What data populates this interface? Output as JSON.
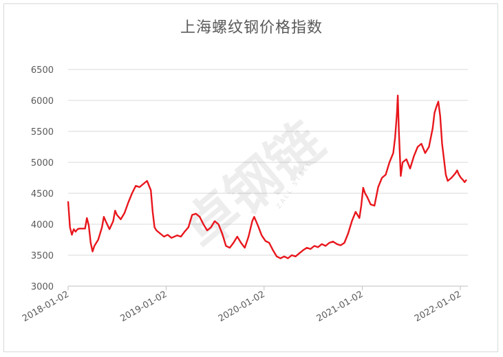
{
  "chart_data": {
    "type": "line",
    "title": "上海螺纹钢价格指数",
    "xlabel": "",
    "ylabel": "",
    "ylim": [
      3000,
      6500
    ],
    "yticks": [
      3000,
      3500,
      4000,
      4500,
      5000,
      5500,
      6000,
      6500
    ],
    "xticks": [
      "2018-01-02",
      "2019-01-02",
      "2020-01-02",
      "2021-01-02",
      "2022-01-02"
    ],
    "grid": true,
    "legend": "none",
    "series": [
      {
        "color": "#e8161c",
        "points": [
          [
            "2018-01-02",
            4370
          ],
          [
            "2018-01-09",
            3950
          ],
          [
            "2018-01-16",
            3830
          ],
          [
            "2018-01-23",
            3920
          ],
          [
            "2018-01-30",
            3880
          ],
          [
            "2018-02-06",
            3920
          ],
          [
            "2018-02-13",
            3930
          ],
          [
            "2018-03-06",
            3930
          ],
          [
            "2018-03-13",
            4100
          ],
          [
            "2018-03-20",
            3980
          ],
          [
            "2018-03-27",
            3700
          ],
          [
            "2018-04-03",
            3560
          ],
          [
            "2018-04-10",
            3650
          ],
          [
            "2018-04-24",
            3750
          ],
          [
            "2018-05-08",
            3950
          ],
          [
            "2018-05-15",
            4120
          ],
          [
            "2018-05-22",
            4050
          ],
          [
            "2018-06-05",
            3920
          ],
          [
            "2018-06-19",
            4050
          ],
          [
            "2018-06-26",
            4220
          ],
          [
            "2018-07-03",
            4150
          ],
          [
            "2018-07-17",
            4080
          ],
          [
            "2018-07-31",
            4180
          ],
          [
            "2018-08-14",
            4350
          ],
          [
            "2018-08-28",
            4500
          ],
          [
            "2018-09-11",
            4620
          ],
          [
            "2018-09-25",
            4600
          ],
          [
            "2018-10-09",
            4650
          ],
          [
            "2018-10-23",
            4700
          ],
          [
            "2018-11-06",
            4550
          ],
          [
            "2018-11-13",
            4200
          ],
          [
            "2018-11-20",
            3950
          ],
          [
            "2018-11-27",
            3900
          ],
          [
            "2018-12-11",
            3850
          ],
          [
            "2018-12-25",
            3800
          ],
          [
            "2019-01-08",
            3830
          ],
          [
            "2019-01-22",
            3780
          ],
          [
            "2019-02-12",
            3820
          ],
          [
            "2019-02-26",
            3800
          ],
          [
            "2019-03-12",
            3880
          ],
          [
            "2019-03-26",
            3950
          ],
          [
            "2019-04-09",
            4150
          ],
          [
            "2019-04-23",
            4170
          ],
          [
            "2019-05-07",
            4120
          ],
          [
            "2019-05-21",
            4000
          ],
          [
            "2019-06-04",
            3900
          ],
          [
            "2019-06-18",
            3950
          ],
          [
            "2019-07-02",
            4050
          ],
          [
            "2019-07-16",
            4000
          ],
          [
            "2019-07-30",
            3850
          ],
          [
            "2019-08-13",
            3650
          ],
          [
            "2019-08-27",
            3620
          ],
          [
            "2019-09-10",
            3700
          ],
          [
            "2019-09-24",
            3800
          ],
          [
            "2019-10-08",
            3700
          ],
          [
            "2019-10-22",
            3620
          ],
          [
            "2019-11-05",
            3800
          ],
          [
            "2019-11-19",
            4050
          ],
          [
            "2019-11-26",
            4120
          ],
          [
            "2019-12-10",
            3980
          ],
          [
            "2019-12-24",
            3820
          ],
          [
            "2020-01-07",
            3730
          ],
          [
            "2020-01-21",
            3700
          ],
          [
            "2020-02-04",
            3580
          ],
          [
            "2020-02-18",
            3480
          ],
          [
            "2020-03-03",
            3450
          ],
          [
            "2020-03-17",
            3480
          ],
          [
            "2020-03-31",
            3450
          ],
          [
            "2020-04-14",
            3500
          ],
          [
            "2020-04-28",
            3480
          ],
          [
            "2020-05-12",
            3530
          ],
          [
            "2020-05-26",
            3580
          ],
          [
            "2020-06-09",
            3620
          ],
          [
            "2020-06-23",
            3600
          ],
          [
            "2020-07-07",
            3650
          ],
          [
            "2020-07-21",
            3630
          ],
          [
            "2020-08-04",
            3680
          ],
          [
            "2020-08-18",
            3650
          ],
          [
            "2020-09-01",
            3700
          ],
          [
            "2020-09-15",
            3720
          ],
          [
            "2020-09-29",
            3680
          ],
          [
            "2020-10-13",
            3660
          ],
          [
            "2020-10-27",
            3700
          ],
          [
            "2020-11-10",
            3850
          ],
          [
            "2020-11-24",
            4050
          ],
          [
            "2020-12-08",
            4200
          ],
          [
            "2020-12-22",
            4100
          ],
          [
            "2020-12-29",
            4300
          ],
          [
            "2021-01-05",
            4590
          ],
          [
            "2021-01-12",
            4500
          ],
          [
            "2021-01-19",
            4450
          ],
          [
            "2021-02-02",
            4320
          ],
          [
            "2021-02-16",
            4300
          ],
          [
            "2021-03-02",
            4600
          ],
          [
            "2021-03-16",
            4750
          ],
          [
            "2021-03-30",
            4800
          ],
          [
            "2021-04-13",
            5000
          ],
          [
            "2021-04-27",
            5150
          ],
          [
            "2021-05-04",
            5400
          ],
          [
            "2021-05-11",
            5800
          ],
          [
            "2021-05-14",
            6080
          ],
          [
            "2021-05-18",
            5500
          ],
          [
            "2021-05-25",
            4780
          ],
          [
            "2021-06-01",
            5000
          ],
          [
            "2021-06-15",
            5050
          ],
          [
            "2021-06-29",
            4900
          ],
          [
            "2021-07-13",
            5100
          ],
          [
            "2021-07-27",
            5250
          ],
          [
            "2021-08-10",
            5300
          ],
          [
            "2021-08-24",
            5150
          ],
          [
            "2021-09-07",
            5250
          ],
          [
            "2021-09-21",
            5550
          ],
          [
            "2021-09-28",
            5800
          ],
          [
            "2021-10-05",
            5900
          ],
          [
            "2021-10-12",
            5980
          ],
          [
            "2021-10-19",
            5750
          ],
          [
            "2021-10-26",
            5300
          ],
          [
            "2021-11-02",
            5050
          ],
          [
            "2021-11-09",
            4800
          ],
          [
            "2021-11-16",
            4700
          ],
          [
            "2021-11-30",
            4750
          ],
          [
            "2021-12-14",
            4820
          ],
          [
            "2021-12-21",
            4870
          ],
          [
            "2021-12-28",
            4800
          ],
          [
            "2022-01-04",
            4750
          ],
          [
            "2022-01-11",
            4720
          ],
          [
            "2022-01-18",
            4680
          ],
          [
            "2022-01-25",
            4720
          ]
        ]
      }
    ]
  },
  "watermark": {
    "text": "卓钢链",
    "subtext": "ZALL STEEL"
  }
}
